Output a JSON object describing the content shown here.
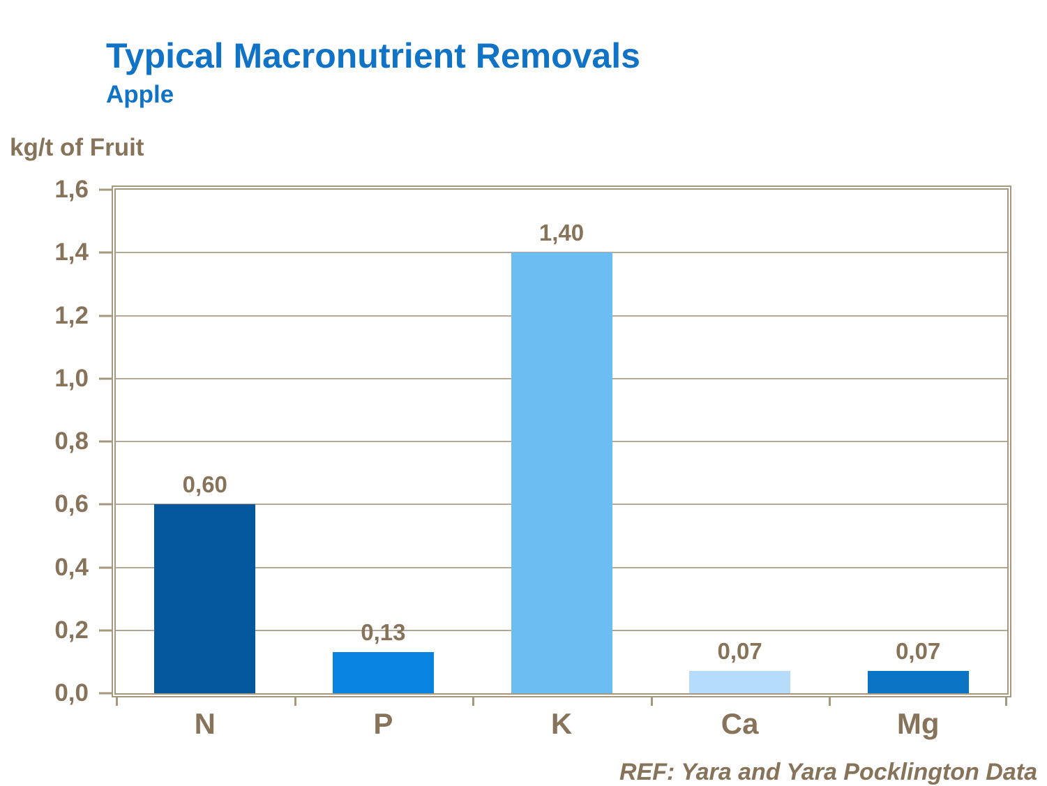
{
  "header": {
    "title": "Typical Macronutrient Removals",
    "subtitle": "Apple",
    "title_color": "#1173C5"
  },
  "chart_data": {
    "type": "bar",
    "title": "Typical Macronutrient Removals",
    "subtitle": "Apple",
    "ylabel": "kg/t of Fruit",
    "xlabel": "",
    "categories": [
      "N",
      "P",
      "K",
      "Ca",
      "Mg"
    ],
    "values": [
      0.6,
      0.13,
      1.4,
      0.07,
      0.07
    ],
    "value_labels": [
      "0,60",
      "0,13",
      "1,40",
      "0,07",
      "0,07"
    ],
    "bar_colors": [
      "#05589E",
      "#0883E0",
      "#6CBDF2",
      "#B5DCFA",
      "#0B74C4"
    ],
    "ylim": [
      0,
      1.6
    ],
    "ytick_step": 0.2,
    "ytick_labels": [
      "0,0",
      "0,2",
      "0,4",
      "0,6",
      "0,8",
      "1,0",
      "1,2",
      "1,4",
      "1,6"
    ],
    "grid": true,
    "legend_position": "none",
    "axis_color": "#A6987F",
    "grid_color": "#B5A896",
    "text_color": "#86735A"
  },
  "footer": {
    "ref_text": "REF: Yara and Yara Pocklington Data"
  }
}
